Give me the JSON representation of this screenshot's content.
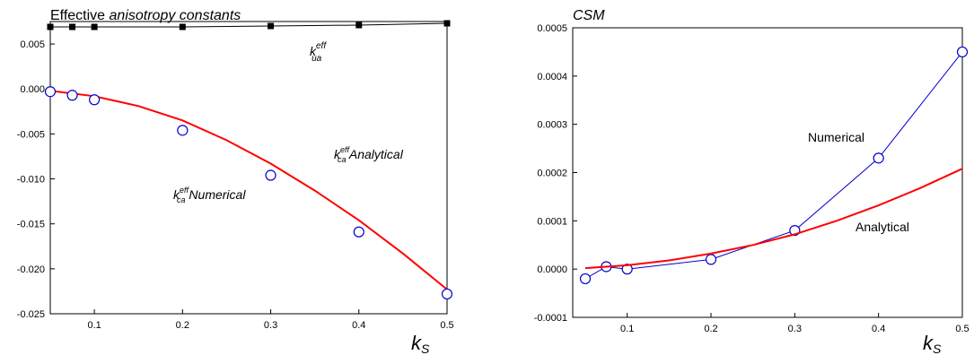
{
  "charts": [
    {
      "title_plain": "Effective ",
      "title_italic": "anisotropy constants",
      "xlabel": "k",
      "xlabel_sub": "S",
      "xlim": [
        0.05,
        0.5
      ],
      "ylim": [
        -0.025,
        0.0075
      ],
      "xticks": [
        0.1,
        0.2,
        0.3,
        0.4,
        0.5
      ],
      "xtick_labels": [
        "0.1",
        "0.2",
        "0.3",
        "0.4",
        "0.5"
      ],
      "yticks": [
        0.005,
        0.0,
        -0.005,
        -0.01,
        -0.015,
        -0.02,
        -0.025
      ],
      "ytick_labels": [
        "0.005",
        "0.000",
        "-0.005",
        "-0.010",
        "-0.015",
        "-0.020",
        "-0.025"
      ],
      "annotations": [
        {
          "base": "k",
          "sup": "eff",
          "sub": "ua",
          "text": ""
        },
        {
          "base": "k",
          "sup": "eff",
          "sub": "ca",
          "text": " Analytical"
        },
        {
          "base": "k",
          "sup": "eff",
          "sub": "ca",
          "text": " Numerical"
        }
      ]
    },
    {
      "title_plain": "",
      "title_italic": "CSM",
      "xlabel": "k",
      "xlabel_sub": "S",
      "xlim": [
        0.035,
        0.5
      ],
      "ylim": [
        -0.0001,
        0.0005
      ],
      "xticks": [
        0.1,
        0.2,
        0.3,
        0.4,
        0.5
      ],
      "xtick_labels": [
        "0.1",
        "0.2",
        "0.3",
        "0.4",
        "0.5"
      ],
      "yticks": [
        0.0005,
        0.0004,
        0.0003,
        0.0002,
        0.0001,
        0.0,
        -0.0001
      ],
      "ytick_labels": [
        "0.0005",
        "0.0004",
        "0.0003",
        "0.0002",
        "0.0001",
        "0.0000",
        "-0.0001"
      ],
      "annotations": [
        {
          "text": "Numerical"
        },
        {
          "text": "Analytical"
        }
      ]
    }
  ],
  "chart_data": [
    {
      "type": "line",
      "title": "Effective anisotropy constants",
      "xlabel": "k_S",
      "ylabel": "",
      "xlim": [
        0.05,
        0.5
      ],
      "ylim": [
        -0.025,
        0.0075
      ],
      "series": [
        {
          "name": "k_ua^eff",
          "style": "line-square-marker",
          "color": "#000000",
          "x": [
            0.05,
            0.075,
            0.1,
            0.2,
            0.3,
            0.4,
            0.5
          ],
          "y": [
            0.0069,
            0.0069,
            0.0069,
            0.0069,
            0.007,
            0.0071,
            0.0073
          ]
        },
        {
          "name": "k_ca^eff Analytical",
          "style": "line",
          "color": "#ff0000",
          "x": [
            0.05,
            0.1,
            0.15,
            0.2,
            0.25,
            0.3,
            0.35,
            0.4,
            0.45,
            0.5
          ],
          "y": [
            -0.0002,
            -0.0008,
            -0.0019,
            -0.0035,
            -0.0057,
            -0.0083,
            -0.0113,
            -0.0146,
            -0.0183,
            -0.0223
          ]
        },
        {
          "name": "k_ca^eff Numerical",
          "style": "open-circle-marker",
          "color": "#0000cc",
          "x": [
            0.05,
            0.075,
            0.1,
            0.2,
            0.3,
            0.4,
            0.5
          ],
          "y": [
            -0.0003,
            -0.0007,
            -0.0012,
            -0.0046,
            -0.0096,
            -0.0159,
            -0.0228
          ]
        }
      ]
    },
    {
      "type": "line",
      "title": "CSM",
      "xlabel": "k_S",
      "ylabel": "",
      "xlim": [
        0.035,
        0.5
      ],
      "ylim": [
        -0.0001,
        0.0005
      ],
      "series": [
        {
          "name": "Numerical",
          "style": "line-open-circle-marker",
          "color": "#0000cc",
          "x": [
            0.05,
            0.075,
            0.1,
            0.2,
            0.3,
            0.4,
            0.5
          ],
          "y": [
            -2e-05,
            5e-06,
            0.0,
            2e-05,
            8e-05,
            0.00023,
            0.00045
          ]
        },
        {
          "name": "Analytical",
          "style": "line",
          "color": "#ff0000",
          "x": [
            0.05,
            0.1,
            0.15,
            0.2,
            0.25,
            0.3,
            0.35,
            0.4,
            0.45,
            0.5
          ],
          "y": [
            2e-06,
            8e-06,
            1.8e-05,
            3.2e-05,
            5e-05,
            7.2e-05,
            0.0001,
            0.000132,
            0.000168,
            0.000208
          ]
        }
      ]
    }
  ]
}
